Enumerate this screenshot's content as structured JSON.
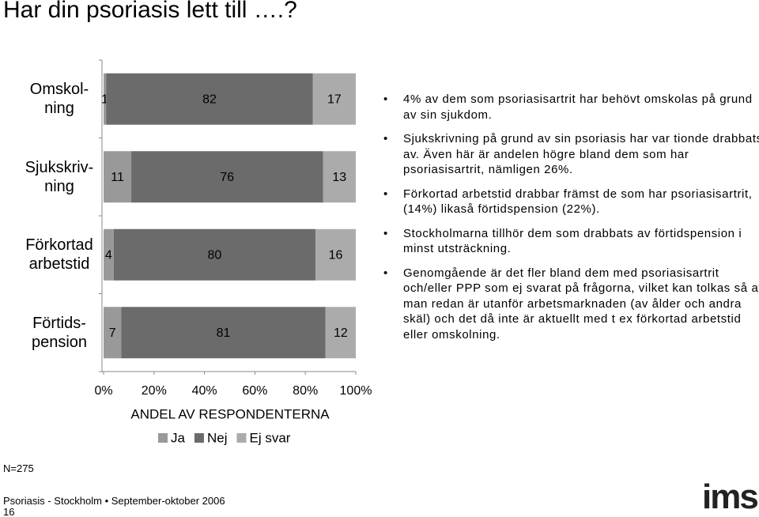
{
  "title": "Har din psoriasis lett till ….?",
  "chart_data": {
    "type": "bar",
    "orientation": "horizontal",
    "stacked": true,
    "categories": [
      "Omskol-\nning",
      "Sjukskriv-\nning",
      "Förkortad\narbetstid",
      "Förtids-\npension"
    ],
    "series": [
      {
        "name": "Ja",
        "color": "#999999",
        "values": [
          1,
          11,
          4,
          7
        ]
      },
      {
        "name": "Nej",
        "color": "#6b6b6b",
        "values": [
          82,
          76,
          80,
          81
        ]
      },
      {
        "name": "Ej svar",
        "color": "#ababab",
        "values": [
          17,
          13,
          16,
          12
        ]
      }
    ],
    "xlim": [
      0,
      100
    ],
    "xticks": [
      {
        "value": 0,
        "label": "0%"
      },
      {
        "value": 20,
        "label": "20%"
      },
      {
        "value": 40,
        "label": "40%"
      },
      {
        "value": 60,
        "label": "60%"
      },
      {
        "value": 80,
        "label": "80%"
      },
      {
        "value": 100,
        "label": "100%"
      }
    ],
    "xlabel": "ANDEL AV RESPONDENTERNA",
    "legend": "bottom"
  },
  "notes": [
    "4% av dem som psoriasisartrit har behövt omskolas på grund av sin sjukdom.",
    "Sjukskrivning på grund av sin psoriasis har var tionde drabbats av. Även här är andelen högre bland dem som har psoriasisartrit, nämligen 26%.",
    "Förkortad arbetstid drabbar främst de som har psoriasisartrit, (14%) likaså förtidspension (22%).",
    "Stockholmarna tillhör dem som drabbats av förtidspension i minst utsträckning.",
    "Genomgående är det fler bland dem med psoriasisartrit och/eller PPP som ej svarat på frågorna, vilket kan tolkas så att man redan är utanför arbetsmarknaden (av ålder och andra skäl) och det då inte är aktuellt med t ex förkortad arbetstid eller omskolning."
  ],
  "sample_size": "N=275",
  "footer": {
    "source": "Psoriasis - Stockholm • September-oktober 2006",
    "page": "16",
    "logo": "ims"
  }
}
